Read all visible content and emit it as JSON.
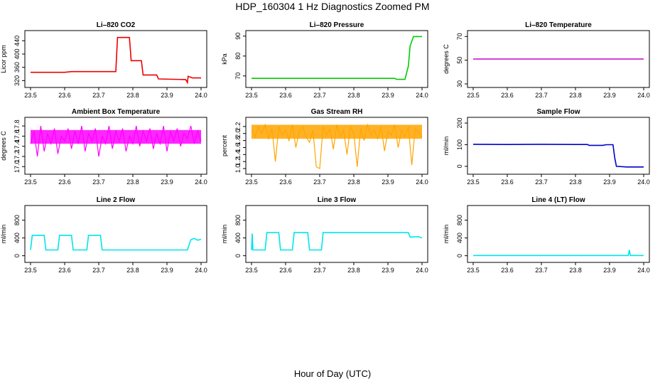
{
  "figure": {
    "title": "HDP_160304  1 Hz Diagnostics Zoomed PM",
    "xlabel": "Hour of Day (UTC)"
  },
  "chart_data": [
    {
      "type": "line",
      "title": "Li–820 CO2",
      "ylabel": "Licor ppm",
      "color": "#ee0000",
      "xlim": [
        23.5,
        24.0
      ],
      "ylim": [
        310,
        460
      ],
      "xticks": [
        "23.5",
        "23.6",
        "23.7",
        "23.8",
        "23.9",
        "24.0"
      ],
      "yticks": [
        "320",
        "360",
        "400",
        "440"
      ],
      "series": [
        {
          "x": [
            23.5,
            23.6,
            23.62,
            23.75,
            23.755,
            23.79,
            23.795,
            23.825,
            23.83,
            23.87,
            23.875,
            23.955,
            23.96,
            23.962,
            23.97,
            23.975,
            24.0
          ],
          "y": [
            345,
            345,
            347,
            347,
            450,
            450,
            380,
            380,
            337,
            337,
            325,
            323,
            314,
            333,
            330,
            328,
            328
          ]
        }
      ]
    },
    {
      "type": "line",
      "title": "Li–820 Pressure",
      "ylabel": "kPa",
      "color": "#00cc00",
      "xlim": [
        23.5,
        24.0
      ],
      "ylim": [
        66,
        91
      ],
      "xticks": [
        "23.5",
        "23.6",
        "23.7",
        "23.8",
        "23.9",
        "24.0"
      ],
      "yticks": [
        "70",
        "80",
        "90"
      ],
      "series": [
        {
          "x": [
            23.5,
            23.92,
            23.925,
            23.95,
            23.96,
            23.965,
            23.975,
            24.0
          ],
          "y": [
            68.8,
            68.8,
            68.3,
            68.3,
            75,
            85,
            89.8,
            89.8
          ]
        }
      ]
    },
    {
      "type": "line",
      "title": "Li–820 Temperature",
      "ylabel": "degrees C",
      "color": "#c800c8",
      "xlim": [
        23.5,
        24.0
      ],
      "ylim": [
        30,
        72
      ],
      "xticks": [
        "23.5",
        "23.6",
        "23.7",
        "23.8",
        "23.9",
        "24.0"
      ],
      "yticks": [
        "30",
        "50",
        "70"
      ],
      "series": [
        {
          "x": [
            23.5,
            24.0
          ],
          "y": [
            51,
            51
          ]
        }
      ]
    },
    {
      "type": "line",
      "title": "Ambient Box Temperature",
      "ylabel": "degrees C",
      "color": "#ff00ff",
      "xlim": [
        23.5,
        24.0
      ],
      "ylim": [
        16.92,
        17.9
      ],
      "xticks": [
        "23.5",
        "23.6",
        "23.7",
        "23.8",
        "23.9",
        "24.0"
      ],
      "yticks": [
        "17.0",
        "17.2",
        "17.4",
        "17.6",
        "17.8"
      ],
      "series": [
        {
          "x": [
            23.5,
            23.51,
            23.52,
            23.53,
            23.54,
            23.55,
            23.56,
            23.57,
            23.58,
            23.59,
            23.6,
            23.61,
            23.62,
            23.63,
            23.64,
            23.65,
            23.66,
            23.67,
            23.68,
            23.69,
            23.7,
            23.71,
            23.72,
            23.73,
            23.74,
            23.75,
            23.76,
            23.77,
            23.78,
            23.79,
            23.8,
            23.81,
            23.82,
            23.83,
            23.84,
            23.85,
            23.86,
            23.87,
            23.88,
            23.89,
            23.9,
            23.91,
            23.92,
            23.93,
            23.94,
            23.95,
            23.96,
            23.97,
            23.98,
            23.99,
            24.0
          ],
          "y": [
            17.45,
            17.7,
            17.2,
            17.8,
            17.3,
            17.65,
            17.45,
            17.75,
            17.25,
            17.6,
            17.5,
            17.75,
            17.35,
            17.7,
            17.45,
            17.8,
            17.3,
            17.65,
            17.5,
            17.75,
            17.2,
            17.6,
            17.45,
            17.8,
            17.35,
            17.7,
            17.5,
            17.75,
            17.3,
            17.6,
            17.45,
            17.8,
            17.4,
            17.7,
            17.5,
            17.75,
            17.35,
            17.65,
            17.45,
            17.8,
            17.3,
            17.7,
            17.5,
            17.75,
            17.4,
            17.65,
            17.55,
            17.8,
            17.45,
            17.7,
            17.5
          ],
          "band": [
            17.45,
            17.72
          ]
        }
      ]
    },
    {
      "type": "line",
      "title": "Gas Stream RH",
      "ylabel": "percent",
      "color": "#ffa500",
      "xlim": [
        23.5,
        24.0
      ],
      "ylim": [
        0.94,
        2.36
      ],
      "xticks": [
        "23.5",
        "23.6",
        "23.7",
        "23.8",
        "23.9",
        "24.0"
      ],
      "yticks": [
        "1.0",
        "1.2",
        "1.4",
        "1.6",
        "1.8",
        "2.0",
        "2.2"
      ],
      "series": [
        {
          "x": [
            23.5,
            23.51,
            23.52,
            23.53,
            23.54,
            23.55,
            23.56,
            23.57,
            23.58,
            23.59,
            23.6,
            23.61,
            23.62,
            23.63,
            23.64,
            23.65,
            23.66,
            23.67,
            23.68,
            23.69,
            23.7,
            23.71,
            23.72,
            23.73,
            23.74,
            23.75,
            23.76,
            23.77,
            23.78,
            23.79,
            23.8,
            23.81,
            23.82,
            23.83,
            23.84,
            23.85,
            23.86,
            23.87,
            23.88,
            23.89,
            23.9,
            23.91,
            23.92,
            23.93,
            23.94,
            23.95,
            23.96,
            23.97,
            23.98,
            23.99,
            24.0
          ],
          "y": [
            2.1,
            1.9,
            2.2,
            2.0,
            2.25,
            1.85,
            2.15,
            1.2,
            2.2,
            1.95,
            2.1,
            1.8,
            2.25,
            1.6,
            2.05,
            2.2,
            1.9,
            1.75,
            2.1,
            1.05,
            1.0,
            2.2,
            1.95,
            2.15,
            1.55,
            2.25,
            1.9,
            2.1,
            1.4,
            2.2,
            2.0,
            1.05,
            2.15,
            1.8,
            2.25,
            1.95,
            2.1,
            1.85,
            2.2,
            1.5,
            2.05,
            1.95,
            2.25,
            1.6,
            2.1,
            1.9,
            2.2,
            1.1,
            2.15,
            2.05,
            1.9
          ],
          "band": [
            1.85,
            2.25
          ]
        }
      ]
    },
    {
      "type": "line",
      "title": "Sample Flow",
      "ylabel": "ml/min",
      "color": "#0000cc",
      "xlim": [
        23.5,
        24.0
      ],
      "ylim": [
        -20,
        210
      ],
      "xticks": [
        "23.5",
        "23.6",
        "23.7",
        "23.8",
        "23.9",
        "24.0"
      ],
      "yticks": [
        "0",
        "100",
        "200"
      ],
      "series": [
        {
          "x": [
            23.5,
            23.6,
            23.7,
            23.8,
            23.835,
            23.84,
            23.88,
            23.89,
            23.91,
            23.915,
            23.92,
            23.95,
            24.0
          ],
          "y": [
            102,
            101,
            102,
            101,
            101,
            97,
            97,
            100,
            100,
            40,
            0,
            -3,
            -3
          ]
        }
      ]
    },
    {
      "type": "line",
      "title": "Line 2 Flow",
      "ylabel": "ml/min",
      "color": "#00e5ee",
      "xlim": [
        23.5,
        24.0
      ],
      "ylim": [
        -70,
        1050
      ],
      "xticks": [
        "23.5",
        "23.6",
        "23.7",
        "23.8",
        "23.9",
        "24.0"
      ],
      "yticks": [
        "0",
        "400",
        "800"
      ],
      "series": [
        {
          "x": [
            23.5,
            23.505,
            23.54,
            23.545,
            23.58,
            23.585,
            23.62,
            23.625,
            23.665,
            23.67,
            23.705,
            23.71,
            23.96,
            23.97,
            23.98,
            23.99,
            24.0
          ],
          "y": [
            130,
            460,
            460,
            130,
            130,
            460,
            460,
            130,
            130,
            460,
            460,
            130,
            130,
            360,
            390,
            350,
            370
          ]
        }
      ]
    },
    {
      "type": "line",
      "title": "Line 3 Flow",
      "ylabel": "ml/min",
      "color": "#00e5ee",
      "xlim": [
        23.5,
        24.0
      ],
      "ylim": [
        -70,
        1050
      ],
      "xticks": [
        "23.5",
        "23.6",
        "23.7",
        "23.8",
        "23.9",
        "24.0"
      ],
      "yticks": [
        "0",
        "400",
        "800"
      ],
      "series": [
        {
          "x": [
            23.5,
            23.502,
            23.504,
            23.54,
            23.545,
            23.58,
            23.585,
            23.62,
            23.625,
            23.665,
            23.67,
            23.705,
            23.71,
            23.96,
            23.965,
            23.99,
            24.0
          ],
          "y": [
            130,
            500,
            130,
            130,
            520,
            520,
            130,
            130,
            520,
            520,
            130,
            130,
            520,
            520,
            420,
            430,
            400
          ]
        }
      ]
    },
    {
      "type": "line",
      "title": "Line 4 (LT) Flow",
      "ylabel": "ml/min",
      "color": "#00e5ee",
      "xlim": [
        23.5,
        24.0
      ],
      "ylim": [
        -70,
        1050
      ],
      "xticks": [
        "23.5",
        "23.6",
        "23.7",
        "23.8",
        "23.9",
        "24.0"
      ],
      "yticks": [
        "0",
        "400",
        "800"
      ],
      "series": [
        {
          "x": [
            23.5,
            23.955,
            23.958,
            23.961,
            23.964,
            24.0
          ],
          "y": [
            5,
            5,
            130,
            5,
            5,
            5
          ]
        }
      ]
    }
  ]
}
